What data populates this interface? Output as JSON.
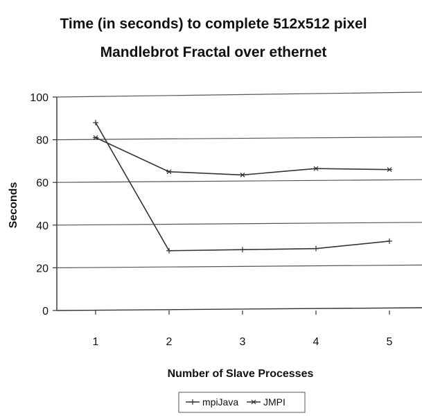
{
  "chart_data": {
    "type": "line",
    "title_lines": [
      "Time (in seconds) to complete 512x512 pixel",
      "Mandlebrot Fractal over ethernet"
    ],
    "xlabel": "Number of Slave Processes",
    "ylabel": "Seconds",
    "x": [
      1,
      2,
      3,
      4,
      5
    ],
    "x_tick_labels": [
      "1",
      "2",
      "3",
      "4",
      "5"
    ],
    "ylim": [
      0,
      100
    ],
    "y_ticks": [
      0,
      20,
      40,
      60,
      80,
      100
    ],
    "y_tick_labels": [
      "0",
      "20",
      "40",
      "60",
      "80",
      "100"
    ],
    "grid": true,
    "legend_position": "bottom",
    "series": [
      {
        "name": "mpiJava",
        "values": [
          88,
          28,
          28.5,
          29,
          32.5
        ],
        "marker": "plus"
      },
      {
        "name": "JMPI",
        "values": [
          81,
          65,
          63.5,
          66.5,
          66
        ],
        "marker": "asterisk"
      }
    ]
  }
}
